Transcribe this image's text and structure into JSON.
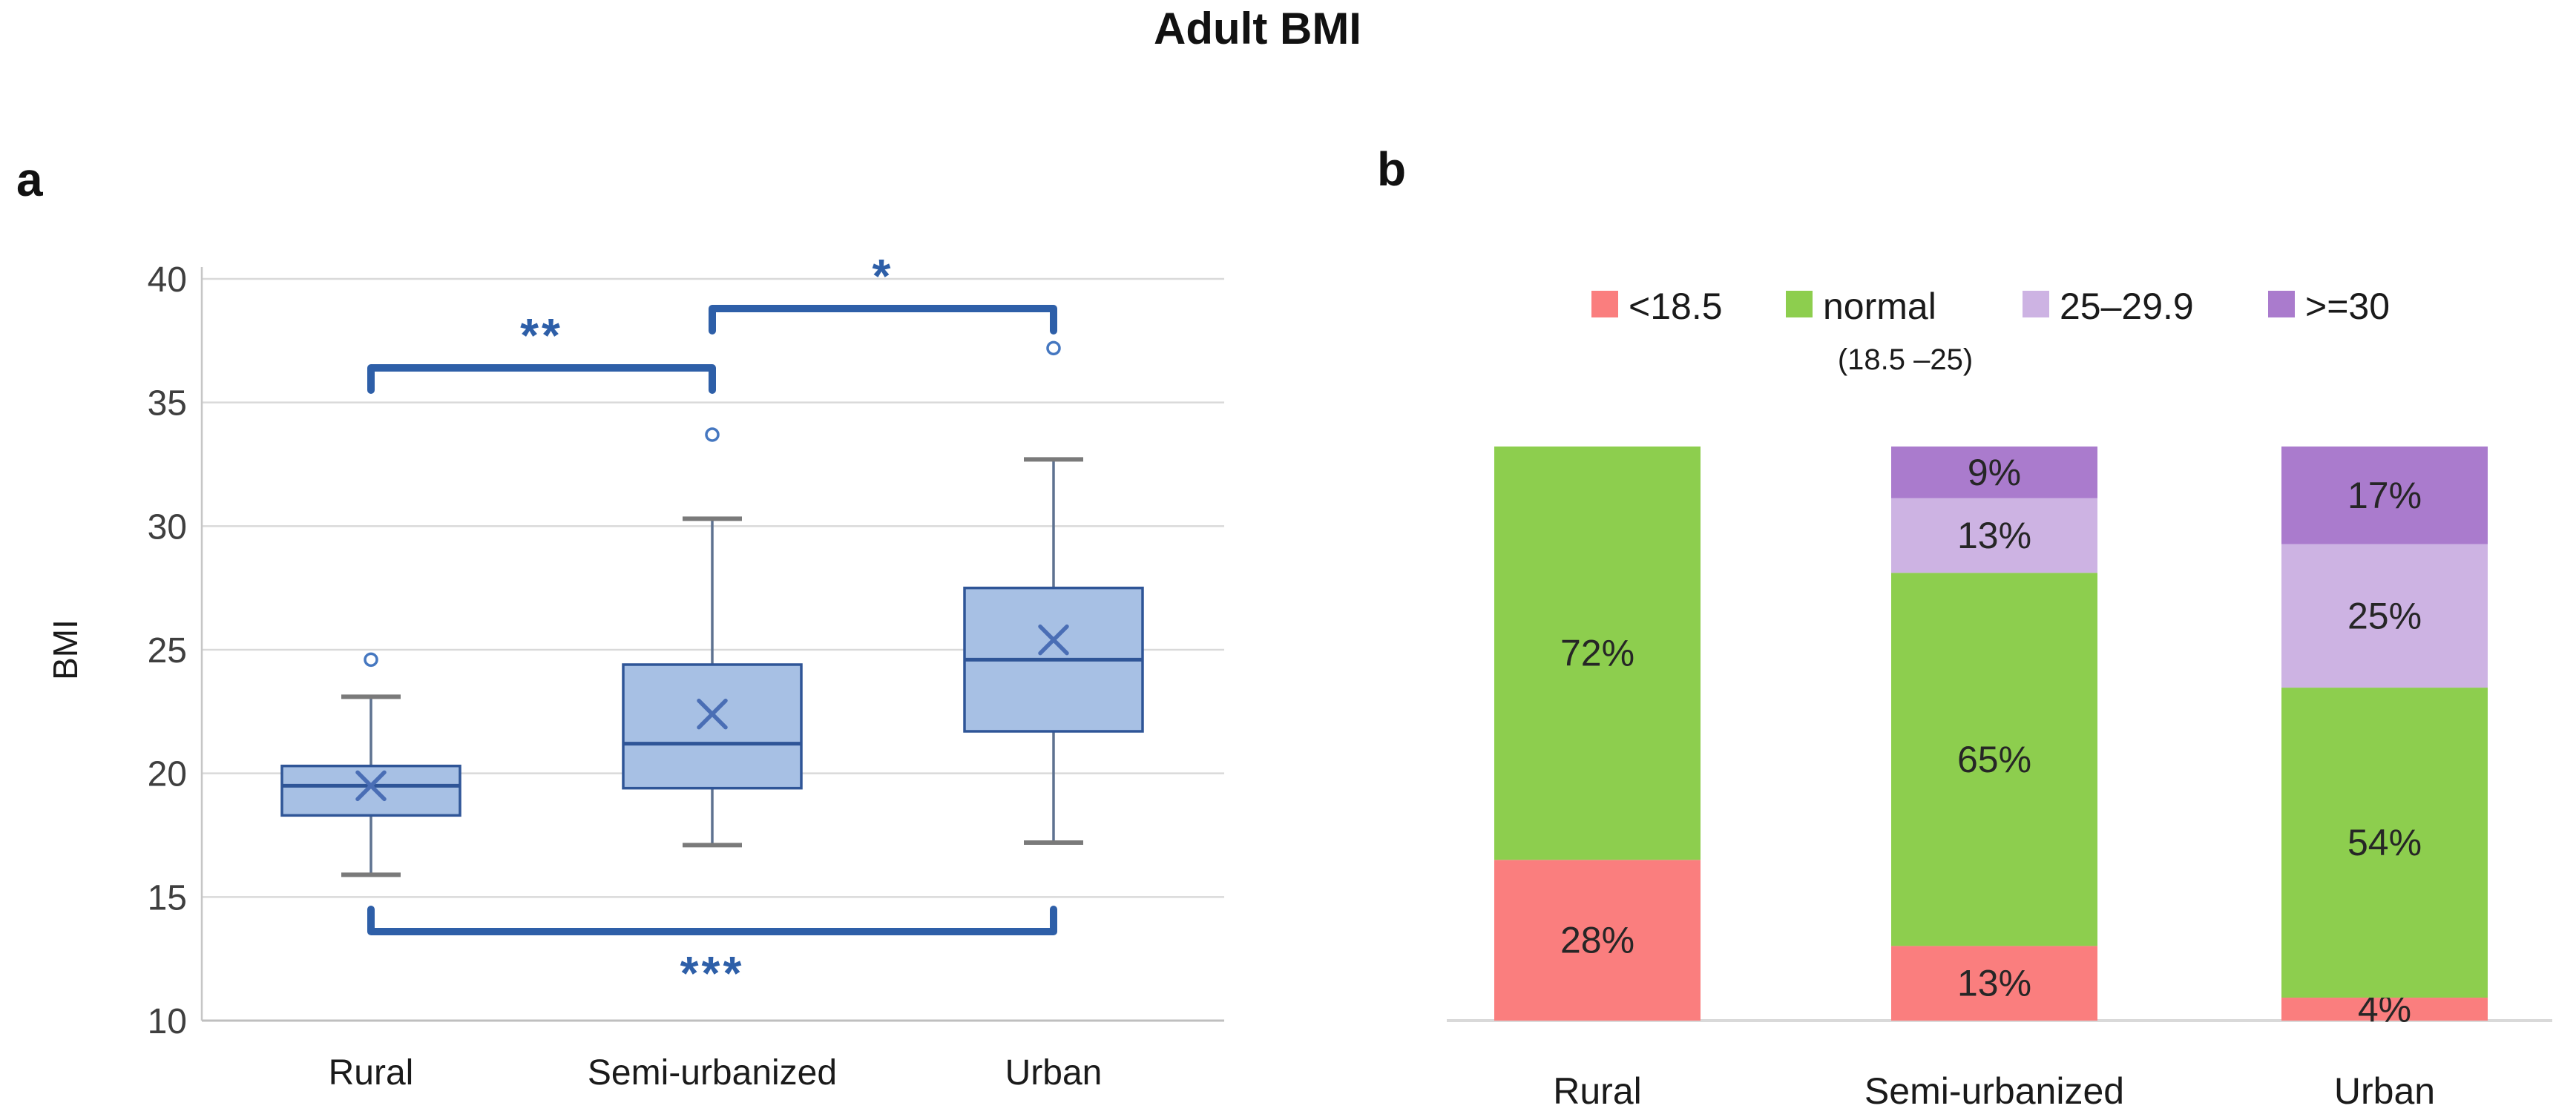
{
  "title": "Adult BMI",
  "panels": {
    "a": {
      "label": "a"
    },
    "b": {
      "label": "b"
    }
  },
  "chart_data": [
    {
      "type": "boxplot",
      "panel": "a",
      "ylabel": "BMI",
      "ylim": [
        10,
        40
      ],
      "yticks": [
        10,
        15,
        20,
        25,
        30,
        35,
        40
      ],
      "grid": true,
      "categories": [
        "Rural",
        "Semi-urbanized",
        "Urban"
      ],
      "series": [
        {
          "category": "Rural",
          "min": 15.9,
          "q1": 18.3,
          "median": 19.5,
          "q3": 20.3,
          "max": 23.1,
          "mean": 19.5,
          "outliers": [
            24.6
          ]
        },
        {
          "category": "Semi-urbanized",
          "min": 17.1,
          "q1": 19.4,
          "median": 21.2,
          "q3": 24.4,
          "max": 30.3,
          "mean": 22.4,
          "outliers": [
            33.7
          ]
        },
        {
          "category": "Urban",
          "min": 17.2,
          "q1": 21.7,
          "median": 24.6,
          "q3": 27.5,
          "max": 32.7,
          "mean": 25.4,
          "outliers": [
            37.2
          ]
        }
      ],
      "significance": [
        {
          "from": "Rural",
          "to": "Semi-urbanized",
          "label": "**",
          "y": 36.4,
          "side": "top"
        },
        {
          "from": "Semi-urbanized",
          "to": "Urban",
          "label": "*",
          "y": 38.8,
          "side": "top"
        },
        {
          "from": "Rural",
          "to": "Urban",
          "label": "***",
          "y": 13.6,
          "side": "bottom"
        }
      ],
      "style": {
        "box_fill": "#A7C0E4",
        "box_border": "#2F5597",
        "median": "#2F5597",
        "whisker": "#5E7290",
        "cap": "#7A7A7A",
        "mean_marker": "#4A6EB5",
        "outlier": "#4577C0",
        "bracket": "#2E5FA8",
        "gridline": "#D9D9D9",
        "axis": "#C6C6C6",
        "tick_text": "#3F3F3F"
      }
    },
    {
      "type": "bar",
      "subtype": "stacked-percent",
      "panel": "b",
      "categories": [
        "Rural",
        "Semi-urbanized",
        "Urban"
      ],
      "series": [
        {
          "name": "<18.5",
          "sublabel": "",
          "color": "#FA7E7E",
          "values": [
            28,
            13,
            4
          ]
        },
        {
          "name": "normal",
          "sublabel": "(18.5 –25)",
          "color": "#8DCE4E",
          "values": [
            72,
            65,
            54
          ]
        },
        {
          "name": "25–29.9",
          "sublabel": "",
          "color": "#CDB3E3",
          "values": [
            0,
            13,
            25
          ]
        },
        {
          "name": ">=30",
          "sublabel": "",
          "color": "#AA7BCD",
          "values": [
            0,
            9,
            17
          ]
        }
      ],
      "value_suffix": "%",
      "legend_position": "top",
      "label_color": "#262626",
      "baseline_color": "#D9D9D9"
    }
  ]
}
